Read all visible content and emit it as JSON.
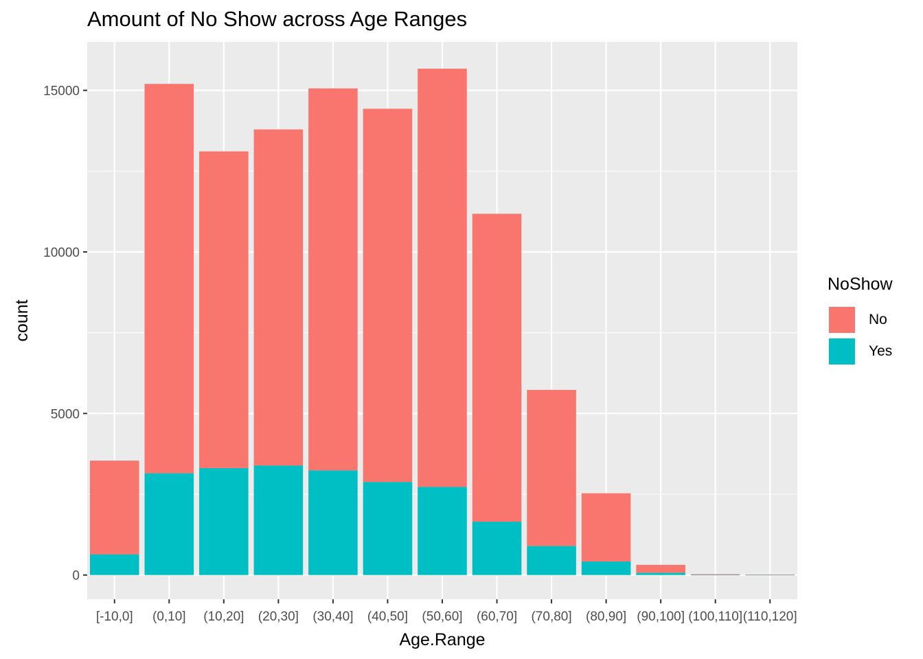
{
  "chart_data": {
    "type": "bar",
    "stacked": true,
    "title": "Amount of No Show across Age Ranges",
    "xlabel": "Age.Range",
    "ylabel": "count",
    "ylim": [
      -750,
      16500
    ],
    "y_ticks": [
      0,
      5000,
      10000,
      15000
    ],
    "grid": true,
    "categories": [
      "[-10,0]",
      "(0,10]",
      "(10,20]",
      "(20,30]",
      "(30,40]",
      "(40,50]",
      "(50,60]",
      "(60,70]",
      "(70,80]",
      "(80,90]",
      "(90,100]",
      "(100,110]",
      "(110,120]"
    ],
    "series": [
      {
        "name": "No",
        "color": "#F8766D",
        "values": [
          2900,
          12050,
          9800,
          10400,
          11820,
          11550,
          12940,
          9530,
          4830,
          2110,
          245,
          20,
          10
        ]
      },
      {
        "name": "Yes",
        "color": "#00BFC4",
        "values": [
          640,
          3150,
          3310,
          3390,
          3240,
          2880,
          2730,
          1650,
          900,
          420,
          70,
          5,
          5
        ]
      }
    ],
    "legend": {
      "title": "NoShow",
      "position": "right"
    }
  }
}
